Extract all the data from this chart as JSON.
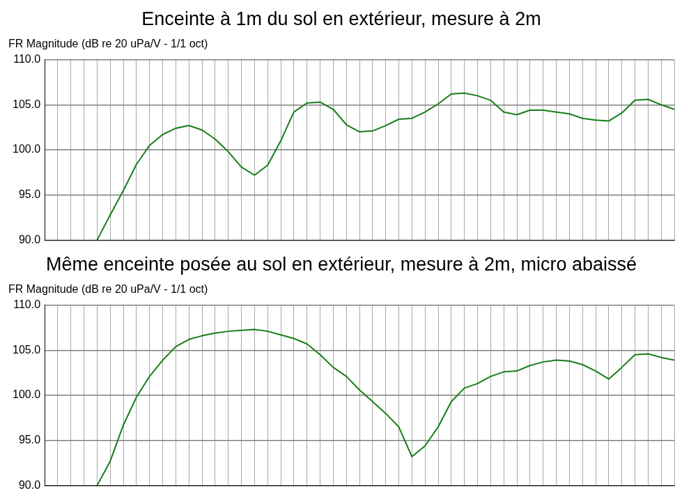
{
  "chart_data": [
    {
      "type": "line",
      "title": "Enceinte à 1m du sol en extérieur, mesure à 2m",
      "ylabel": "FR Magnitude (dB re 20 uPa/V - 1/1 oct)",
      "categories": [
        null,
        null,
        null,
        null,
        null,
        null,
        null,
        null,
        null,
        null,
        null,
        null,
        null,
        null,
        null,
        null,
        null,
        null,
        null,
        null,
        null,
        null,
        null,
        null,
        null,
        null,
        null,
        null,
        null,
        null,
        null,
        null,
        null,
        null,
        null,
        null,
        null,
        null,
        null,
        null,
        null,
        null,
        null,
        null,
        null,
        null,
        null,
        null,
        null
      ],
      "series": [
        {
          "color": "#177d17",
          "values": [
            null,
            null,
            null,
            null,
            90.0,
            92.8,
            95.5,
            98.4,
            100.5,
            101.7,
            102.4,
            102.7,
            102.2,
            101.2,
            99.8,
            98.1,
            97.2,
            98.3,
            101.0,
            104.2,
            105.2,
            105.3,
            104.5,
            102.8,
            102.0,
            102.1,
            102.7,
            103.4,
            103.5,
            104.2,
            105.1,
            106.2,
            106.3,
            106.0,
            105.5,
            104.2,
            103.9,
            104.4,
            104.4,
            104.2,
            104.0,
            103.5,
            103.3,
            103.2,
            104.1,
            105.5,
            105.6,
            105.0,
            104.5
          ]
        }
      ],
      "ylim": [
        90,
        110
      ],
      "yticks": [
        {
          "value": 90,
          "label": "90.0"
        },
        {
          "value": 95,
          "label": "95.0"
        },
        {
          "value": 100,
          "label": "100.0"
        },
        {
          "value": 105,
          "label": "105.0"
        },
        {
          "value": 110,
          "label": "110.0"
        }
      ],
      "grid": true,
      "marker": "none",
      "line_style": "solid",
      "tick_labels": "y"
    },
    {
      "type": "line",
      "title": "Même enceinte posée au sol en extérieur, mesure à 2m, micro abaissé",
      "ylabel": "FR Magnitude (dB re 20 uPa/V - 1/1 oct)",
      "categories": [
        null,
        null,
        null,
        null,
        null,
        null,
        null,
        null,
        null,
        null,
        null,
        null,
        null,
        null,
        null,
        null,
        null,
        null,
        null,
        null,
        null,
        null,
        null,
        null,
        null,
        null,
        null,
        null,
        null,
        null,
        null,
        null,
        null,
        null,
        null,
        null,
        null,
        null,
        null,
        null,
        null,
        null,
        null,
        null,
        null,
        null,
        null,
        null,
        null
      ],
      "series": [
        {
          "color": "#177d17",
          "values": [
            null,
            null,
            null,
            null,
            90.0,
            92.7,
            96.7,
            99.8,
            102.1,
            103.9,
            105.4,
            106.2,
            106.6,
            106.9,
            107.1,
            107.2,
            107.3,
            107.1,
            106.7,
            106.3,
            105.7,
            104.5,
            103.1,
            102.1,
            100.6,
            99.3,
            98.0,
            96.5,
            93.2,
            94.4,
            96.5,
            99.3,
            100.8,
            101.3,
            102.1,
            102.6,
            102.7,
            103.3,
            103.7,
            103.9,
            103.8,
            103.4,
            102.7,
            101.8,
            103.1,
            104.5,
            104.6,
            104.2,
            103.9
          ]
        }
      ],
      "ylim": [
        90,
        110
      ],
      "yticks": [
        {
          "value": 90,
          "label": "90.0"
        },
        {
          "value": 95,
          "label": "95.0"
        },
        {
          "value": 100,
          "label": "100.0"
        },
        {
          "value": 105,
          "label": "105.0"
        },
        {
          "value": 110,
          "label": "110.0"
        }
      ],
      "grid": true,
      "marker": "none",
      "line_style": "solid",
      "tick_labels": "y"
    }
  ]
}
